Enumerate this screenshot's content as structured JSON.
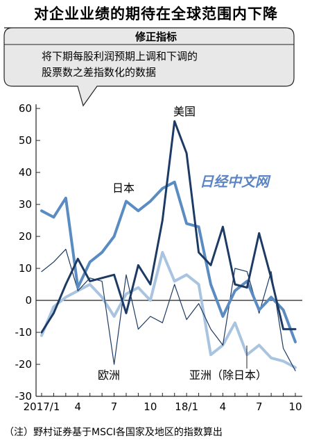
{
  "title": "对企业业绩的期待在全球范围内下降",
  "info_box": {
    "title": "修正指标",
    "line1": "将下期每股利润预期上调和下调的",
    "line2": "股票数之差指数化的数据"
  },
  "watermark": "日经中文网",
  "footnote": "（注）野村证券基于MSCI各国家及地区的指数算出",
  "colors": {
    "japan": "#5a8cc2",
    "us": "#1c3a63",
    "europe": "#1c3a63",
    "asia": "#a9c4e0",
    "axis": "#222222",
    "zero_line": "#222222",
    "box_bg": "#e8e8e8",
    "watermark": "#5a84c4"
  },
  "chart_data": {
    "type": "line",
    "x": [
      "2017/1",
      "2017/2",
      "2017/3",
      "2017/4",
      "2017/5",
      "2017/6",
      "2017/7",
      "2017/8",
      "2017/9",
      "2017/10",
      "2017/11",
      "2017/12",
      "2018/1",
      "2018/2",
      "2018/3",
      "2018/4",
      "2018/5",
      "2018/6",
      "2018/7",
      "2018/8",
      "2018/9",
      "2018/10"
    ],
    "x_tick_labels": [
      "2017/1",
      "4",
      "7",
      "10",
      "18/1",
      "4",
      "7",
      "10"
    ],
    "x_tick_index": [
      0,
      3,
      6,
      9,
      12,
      15,
      18,
      21
    ],
    "y_ticks": [
      60,
      50,
      40,
      30,
      20,
      10,
      0,
      -10,
      -20,
      -30
    ],
    "ylim": [
      -30,
      60
    ],
    "series": [
      {
        "name": "日本",
        "key": "japan",
        "width": 4,
        "values": [
          28,
          26,
          32,
          4,
          12,
          15,
          20,
          31,
          28,
          31,
          35,
          37,
          24,
          23,
          5,
          -5,
          3,
          6,
          -3,
          1,
          -3,
          -13
        ]
      },
      {
        "name": "美国",
        "key": "us",
        "width": 3,
        "values": [
          -10,
          -4,
          5,
          13,
          6,
          7,
          8,
          -4,
          11,
          5,
          25,
          56,
          46,
          15,
          11,
          23,
          5,
          4,
          21,
          7,
          -9,
          -9
        ]
      },
      {
        "name": "欧洲",
        "key": "europe",
        "width": 1.2,
        "values": [
          9,
          12,
          16,
          3,
          7,
          6,
          -20,
          8,
          -9,
          -5,
          -7,
          5,
          -6,
          -1,
          -9,
          -14,
          10,
          9,
          -4,
          9,
          -15,
          -22
        ]
      },
      {
        "name": "亚洲（除日本）",
        "key": "asia",
        "width": 4,
        "values": [
          -11,
          -2,
          1,
          3,
          5,
          1,
          -5,
          2,
          4,
          0,
          15,
          6,
          8,
          5,
          -17,
          -14,
          -7,
          -17,
          -14,
          -18,
          -19,
          -21
        ]
      }
    ],
    "annotations": {
      "japan": "日本",
      "us": "美国",
      "europe": "欧洲",
      "asia": "亚洲（除日本）"
    },
    "grid": false,
    "legend": "none"
  }
}
